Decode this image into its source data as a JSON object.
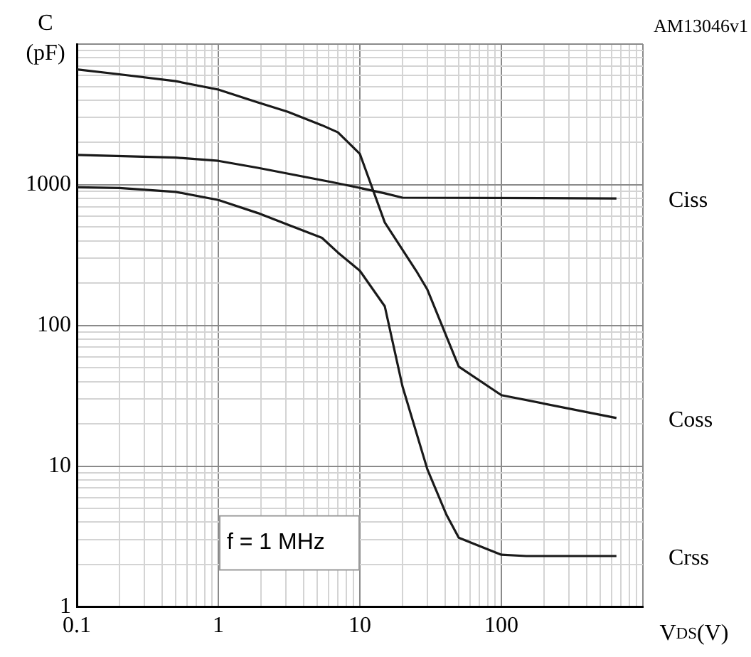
{
  "chart_data": {
    "type": "line",
    "xlabel": "V$_{DS}$(V)",
    "ylabel": "C\n(pF)",
    "log": "xy",
    "grid": true,
    "legend": false,
    "marker": "none",
    "line_style": "solid",
    "xlim": [
      0.1,
      1000
    ],
    "ylim": [
      1,
      10000
    ],
    "xticks": [
      0.1,
      1,
      10,
      100,
      {
        "value": 1000,
        "label": null
      }
    ],
    "yticks": [
      1,
      10,
      100,
      1000,
      {
        "value": 10000,
        "label": null
      }
    ],
    "annotations": [
      "f = 1 MHz",
      "AM13046v1"
    ],
    "series": [
      {
        "name": "Coss",
        "color": "#1a1a1a",
        "x": [
          0.1,
          0.2,
          0.5,
          1,
          1.9,
          3.1,
          5.4,
          7,
          10,
          15,
          25,
          30,
          50,
          100,
          650
        ],
        "values": [
          6600,
          6100,
          5450,
          4750,
          3850,
          3300,
          2650,
          2360,
          1660,
          540,
          245,
          180,
          51,
          32,
          22
        ]
      },
      {
        "name": "Ciss",
        "color": "#1a1a1a",
        "x": [
          0.1,
          0.5,
          1,
          1.9,
          6.2,
          10,
          15,
          20,
          650
        ],
        "values": [
          1630,
          1560,
          1480,
          1320,
          1050,
          950,
          870,
          810,
          800
        ]
      },
      {
        "name": "Crss",
        "color": "#1a1a1a",
        "x": [
          0.1,
          0.2,
          0.5,
          1,
          1.9,
          3.1,
          5.4,
          7,
          10,
          15,
          20,
          30,
          41,
          50,
          100,
          150,
          650
        ],
        "values": [
          960,
          950,
          890,
          780,
          630,
          520,
          420,
          330,
          245,
          137,
          37,
          9.5,
          4.5,
          3.1,
          2.35,
          2.3,
          2.3
        ]
      }
    ]
  }
}
